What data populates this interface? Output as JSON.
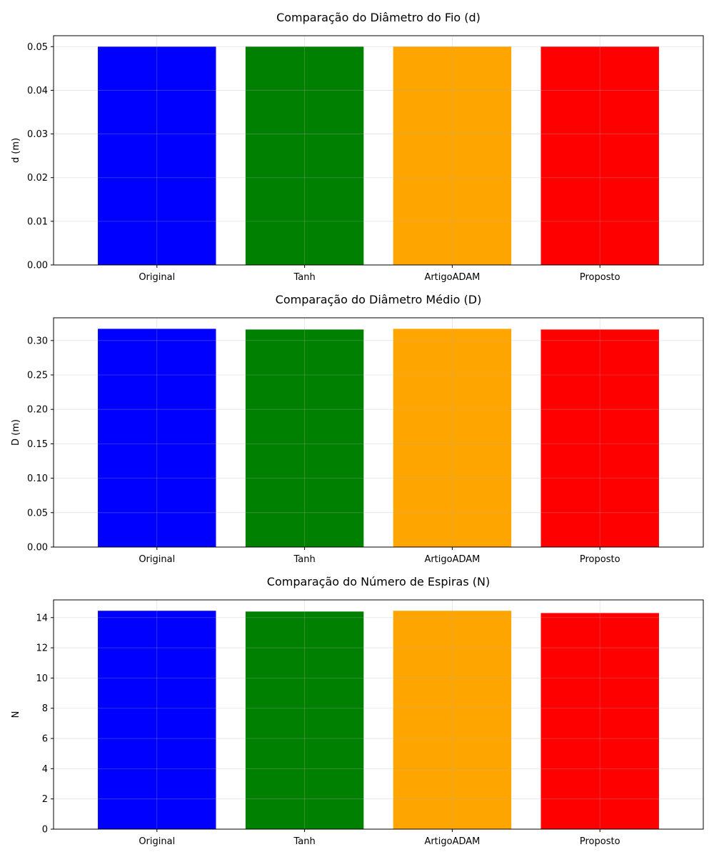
{
  "colors": {
    "Original": "#0000ff",
    "Tanh": "#008000",
    "ArtigoADAM": "#ffa500",
    "Proposto": "#ff0000"
  },
  "chart_data": [
    {
      "type": "bar",
      "title": "Comparação do Diâmetro do Fio (d)",
      "xlabel": "",
      "ylabel": "d (m)",
      "categories": [
        "Original",
        "Tanh",
        "ArtigoADAM",
        "Proposto"
      ],
      "values": [
        0.05,
        0.05,
        0.05,
        0.05
      ],
      "ylim": [
        0,
        0.0525
      ],
      "yticks": [
        0.0,
        0.01,
        0.02,
        0.03,
        0.04,
        0.05
      ],
      "ytick_labels": [
        "0.00",
        "0.01",
        "0.02",
        "0.03",
        "0.04",
        "0.05"
      ],
      "grid": true,
      "legend": "none"
    },
    {
      "type": "bar",
      "title": "Comparação do Diâmetro Médio (D)",
      "xlabel": "",
      "ylabel": "D (m)",
      "categories": [
        "Original",
        "Tanh",
        "ArtigoADAM",
        "Proposto"
      ],
      "values": [
        0.317,
        0.316,
        0.317,
        0.316
      ],
      "ylim": [
        0,
        0.333
      ],
      "yticks": [
        0.0,
        0.05,
        0.1,
        0.15,
        0.2,
        0.25,
        0.3
      ],
      "ytick_labels": [
        "0.00",
        "0.05",
        "0.10",
        "0.15",
        "0.20",
        "0.25",
        "0.30"
      ],
      "grid": true,
      "legend": "none"
    },
    {
      "type": "bar",
      "title": "Comparação do Número de Espiras (N)",
      "xlabel": "",
      "ylabel": "N",
      "categories": [
        "Original",
        "Tanh",
        "ArtigoADAM",
        "Proposto"
      ],
      "values": [
        14.45,
        14.4,
        14.45,
        14.3
      ],
      "ylim": [
        0,
        15.17
      ],
      "yticks": [
        0,
        2,
        4,
        6,
        8,
        10,
        12,
        14
      ],
      "ytick_labels": [
        "0",
        "2",
        "4",
        "6",
        "8",
        "10",
        "12",
        "14"
      ],
      "grid": true,
      "legend": "none"
    }
  ]
}
